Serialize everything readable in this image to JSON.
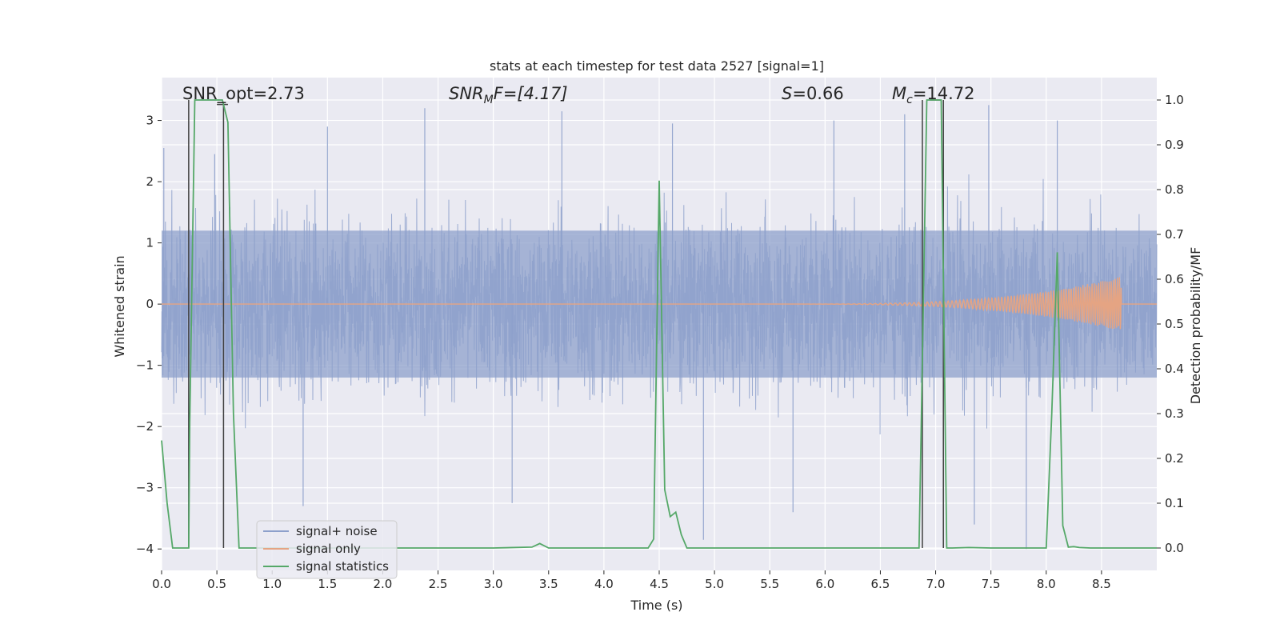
{
  "chart_data": {
    "type": "line",
    "title": "stats at each timestep for test data 2527 [signal=1]",
    "xlabel": "Time (s)",
    "ylabel_left": "Whitened strain",
    "ylabel_right": "Detection probability/MF",
    "xlim": [
      0.0,
      9.0
    ],
    "ylim_left": [
      -4.35,
      3.7
    ],
    "ylim_right": [
      -0.05,
      1.05
    ],
    "grid": true,
    "legend_position": "lower-left",
    "x_ticks": [
      "0.0",
      "0.5",
      "1.0",
      "1.5",
      "2.0",
      "2.5",
      "3.0",
      "3.5",
      "4.0",
      "4.5",
      "5.0",
      "5.5",
      "6.0",
      "6.5",
      "7.0",
      "7.5",
      "8.0",
      "8.5"
    ],
    "x_tick_values": [
      0.0,
      0.5,
      1.0,
      1.5,
      2.0,
      2.5,
      3.0,
      3.5,
      4.0,
      4.5,
      5.0,
      5.5,
      6.0,
      6.5,
      7.0,
      7.5,
      8.0,
      8.5
    ],
    "y_left_ticks": [
      "3",
      "2",
      "1",
      "0",
      "−1",
      "−2",
      "−3",
      "−4"
    ],
    "y_left_tick_values": [
      3,
      2,
      1,
      0,
      -1,
      -2,
      -3,
      -4
    ],
    "y_right_ticks": [
      "1.0",
      "0.9",
      "0.8",
      "0.7",
      "0.6",
      "0.5",
      "0.4",
      "0.3",
      "0.2",
      "0.1",
      "0.0"
    ],
    "y_right_tick_values": [
      1.0,
      0.9,
      0.8,
      0.7,
      0.6,
      0.5,
      0.4,
      0.3,
      0.2,
      0.1,
      0.0
    ],
    "annotations": {
      "snr_opt": "SNR_opt=2.73",
      "snr_mf_main": "SNR",
      "snr_mf_sub": "M",
      "snr_mf_rest": "F=[4.17]",
      "s_main": "S",
      "s_rest": "=0.66",
      "mc_main": "M",
      "mc_sub": "c",
      "mc_rest": "=14.72"
    },
    "colors": {
      "background": "#eaeaf2",
      "grid": "#ffffff",
      "noise": "#8da0cb",
      "signal": "#e5a483",
      "stats": "#55a868",
      "vline": "#404040"
    },
    "series": [
      {
        "name": "signal+ noise",
        "axis": "left",
        "envelope_core": 1.2,
        "envelope_typical": 2.3,
        "spike_peaks": [
          {
            "x": 0.02,
            "y": 2.55
          },
          {
            "x": 0.48,
            "y": 2.45
          },
          {
            "x": 1.5,
            "y": 2.9
          },
          {
            "x": 2.38,
            "y": 3.2
          },
          {
            "x": 3.62,
            "y": 3.15
          },
          {
            "x": 4.62,
            "y": 2.95
          },
          {
            "x": 6.08,
            "y": 3.0
          },
          {
            "x": 6.72,
            "y": 3.1
          },
          {
            "x": 7.48,
            "y": 3.25
          },
          {
            "x": 8.1,
            "y": 3.0
          },
          {
            "x": 1.28,
            "y": -3.3
          },
          {
            "x": 3.17,
            "y": -3.25
          },
          {
            "x": 4.9,
            "y": -3.85
          },
          {
            "x": 5.71,
            "y": -3.4
          },
          {
            "x": 7.82,
            "y": -4.0
          },
          {
            "x": 7.35,
            "y": -3.6
          }
        ]
      },
      {
        "name": "signal only",
        "axis": "left",
        "chirp_start": 5.5,
        "chirp_end": 8.68,
        "peak_amplitude": 0.45
      },
      {
        "name": "signal statistics",
        "axis": "right",
        "x": [
          0.0,
          0.05,
          0.1,
          0.15,
          0.2,
          0.245,
          0.255,
          0.3,
          0.35,
          0.4,
          0.45,
          0.5,
          0.55,
          0.6,
          0.65,
          0.7,
          1.0,
          2.0,
          3.0,
          3.35,
          3.42,
          3.5,
          4.0,
          4.4,
          4.45,
          4.5,
          4.55,
          4.6,
          4.65,
          4.7,
          4.75,
          5.0,
          6.0,
          6.85,
          6.87,
          6.92,
          6.97,
          7.0,
          7.05,
          7.1,
          7.15,
          7.3,
          7.5,
          7.8,
          8.0,
          8.05,
          8.1,
          8.15,
          8.2,
          8.25,
          8.3,
          8.4,
          8.5,
          9.0
        ],
        "y": [
          0.24,
          0.1,
          0.0,
          0.0,
          0.0,
          0.0,
          0.28,
          1.0,
          1.0,
          1.0,
          1.0,
          1.0,
          1.0,
          0.95,
          0.3,
          0.0,
          0.0,
          0.0,
          0.0,
          0.002,
          0.01,
          0.0,
          0.0,
          0.0,
          0.02,
          0.82,
          0.13,
          0.07,
          0.08,
          0.03,
          0.0,
          0.0,
          0.0,
          0.0,
          0.28,
          1.0,
          1.0,
          1.0,
          1.0,
          0.0,
          0.0,
          0.001,
          0.0,
          0.0,
          0.0,
          0.3,
          0.66,
          0.05,
          0.002,
          0.003,
          0.001,
          0.0,
          0.0,
          0.0
        ]
      }
    ],
    "vertical_lines": [
      {
        "x": 0.245,
        "y_top": 1.0,
        "y_bottom": 0.0
      },
      {
        "x": 0.56,
        "y_top": 0.99,
        "y_bottom": 0.0
      },
      {
        "x": 6.88,
        "y_top": 1.0,
        "y_bottom": 0.0
      },
      {
        "x": 7.07,
        "y_top": 1.0,
        "y_bottom": 0.0
      }
    ],
    "legend": [
      "signal+ noise",
      "signal only",
      "signal statistics"
    ]
  }
}
